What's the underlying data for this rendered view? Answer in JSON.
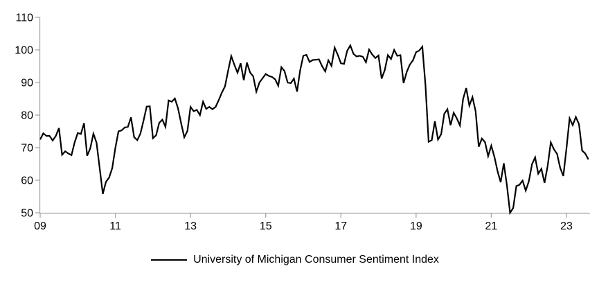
{
  "chart_data": {
    "type": "line",
    "title": "",
    "xlabel": "",
    "ylabel": "",
    "ylim": [
      50,
      110
    ],
    "grid": false,
    "legend": {
      "position": "bottom-center",
      "label": "University of Michigan Consumer Sentiment Index"
    },
    "colors": {
      "line": "#000000",
      "axis": "#a6a6a6",
      "text": "#000000",
      "background": "#ffffff"
    },
    "y_ticks": [
      110,
      100,
      90,
      80,
      70,
      60,
      50
    ],
    "x_ticks": {
      "labels": [
        "09",
        "11",
        "13",
        "15",
        "17",
        "19",
        "21",
        "23"
      ],
      "indices": [
        0,
        24,
        48,
        72,
        96,
        120,
        144,
        168
      ]
    },
    "series": [
      {
        "name": "University of Michigan Consumer Sentiment Index",
        "color": "#000000",
        "values": [
          72.5,
          74.4,
          73.6,
          73.6,
          72.2,
          73.6,
          76.0,
          67.8,
          68.9,
          68.2,
          67.7,
          71.6,
          74.5,
          74.2,
          77.5,
          67.5,
          69.8,
          74.3,
          71.5,
          63.7,
          55.8,
          59.5,
          60.8,
          63.7,
          69.9,
          75.0,
          75.3,
          76.2,
          76.4,
          79.3,
          73.2,
          72.3,
          74.3,
          78.3,
          82.6,
          82.7,
          72.9,
          73.8,
          77.6,
          78.6,
          76.4,
          84.5,
          84.1,
          85.1,
          82.1,
          77.5,
          73.2,
          75.1,
          82.5,
          81.2,
          81.6,
          80.0,
          84.1,
          81.9,
          82.5,
          81.8,
          82.5,
          84.6,
          86.9,
          88.8,
          93.6,
          98.1,
          95.4,
          93.0,
          95.9,
          90.7,
          96.1,
          93.1,
          91.9,
          87.2,
          90.0,
          91.3,
          92.6,
          92.0,
          91.7,
          91.0,
          89.0,
          94.7,
          93.5,
          90.0,
          89.8,
          91.2,
          87.2,
          93.8,
          98.2,
          98.5,
          96.3,
          96.9,
          97.0,
          97.1,
          95.0,
          93.4,
          96.8,
          95.1,
          100.7,
          98.5,
          95.9,
          95.7,
          99.7,
          101.4,
          98.8,
          98.0,
          98.2,
          97.9,
          96.2,
          100.1,
          98.6,
          97.5,
          98.3,
          91.2,
          93.8,
          98.4,
          97.2,
          100.0,
          98.2,
          98.4,
          89.8,
          93.2,
          95.5,
          96.8,
          99.3,
          99.8,
          101.0,
          89.1,
          71.8,
          72.3,
          78.1,
          72.5,
          74.1,
          80.4,
          81.8,
          76.9,
          80.7,
          79.0,
          76.8,
          84.9,
          88.3,
          82.9,
          85.5,
          81.2,
          70.3,
          72.8,
          71.7,
          67.4,
          70.6,
          67.2,
          62.8,
          59.4,
          65.2,
          58.4,
          50.0,
          51.5,
          58.2,
          58.6,
          59.9,
          56.8,
          59.7,
          64.9,
          67.0,
          62.0,
          63.5,
          59.2,
          64.4,
          71.6,
          69.5,
          68.1,
          63.8,
          61.3,
          69.7,
          79.0,
          76.9,
          79.4,
          77.2,
          69.1,
          68.2,
          66.4
        ]
      }
    ]
  }
}
